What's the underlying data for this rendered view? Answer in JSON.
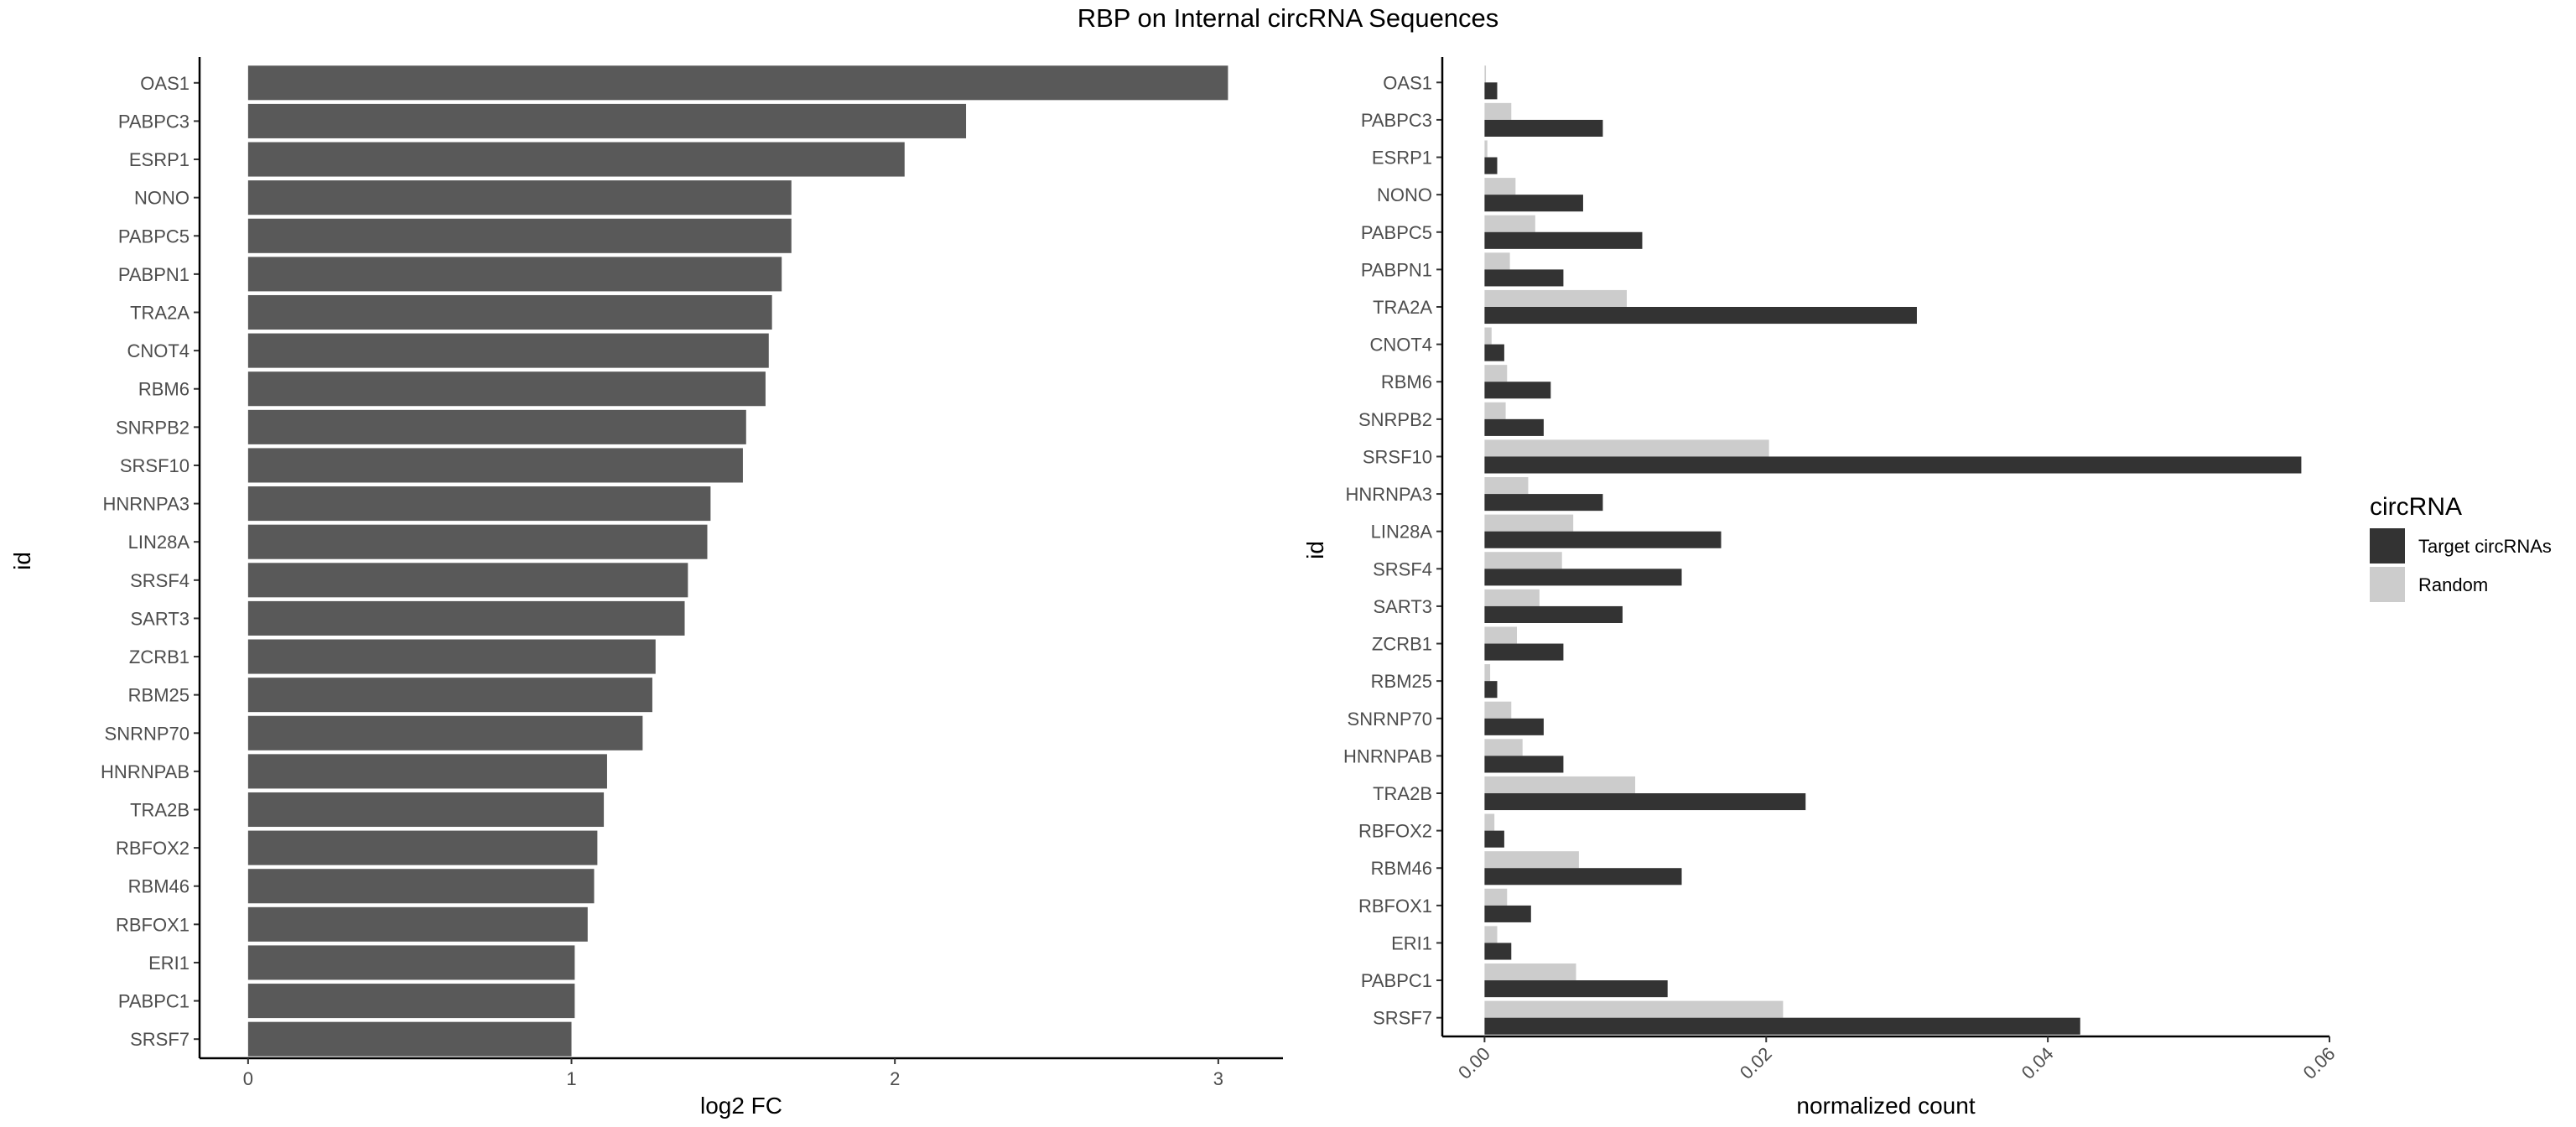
{
  "title": "RBP on Internal circRNA Sequences",
  "chart_data": [
    {
      "type": "bar",
      "orientation": "horizontal",
      "xlabel": "log2 FC",
      "ylabel": "id",
      "xlim": [
        -0.15,
        3.2
      ],
      "xticks": [
        0,
        1,
        2,
        3
      ],
      "xtick_labels": [
        "0",
        "1",
        "2",
        "3"
      ],
      "grid": false,
      "bar_color": "#595959",
      "categories": [
        "OAS1",
        "PABPC3",
        "ESRP1",
        "NONO",
        "PABPC5",
        "PABPN1",
        "TRA2A",
        "CNOT4",
        "RBM6",
        "SNRPB2",
        "SRSF10",
        "HNRNPA3",
        "LIN28A",
        "SRSF4",
        "SART3",
        "ZCRB1",
        "RBM25",
        "SNRNP70",
        "HNRNPAB",
        "TRA2B",
        "RBFOX2",
        "RBM46",
        "RBFOX1",
        "ERI1",
        "PABPC1",
        "SRSF7"
      ],
      "values": [
        3.03,
        2.22,
        2.03,
        1.68,
        1.68,
        1.65,
        1.62,
        1.61,
        1.6,
        1.54,
        1.53,
        1.43,
        1.42,
        1.36,
        1.35,
        1.26,
        1.25,
        1.22,
        1.11,
        1.1,
        1.08,
        1.07,
        1.05,
        1.01,
        1.01,
        1.0
      ]
    },
    {
      "type": "bar",
      "orientation": "horizontal",
      "grouped": true,
      "xlabel": "normalized count",
      "ylabel": "id",
      "xlim": [
        -0.003,
        0.06
      ],
      "xticks": [
        0,
        0.02,
        0.04,
        0.06
      ],
      "xtick_labels": [
        "0.00",
        "0.02",
        "0.04",
        "0.06"
      ],
      "grid": false,
      "legend": {
        "title": "circRNA",
        "position": "right"
      },
      "categories": [
        "OAS1",
        "PABPC3",
        "ESRP1",
        "NONO",
        "PABPC5",
        "PABPN1",
        "TRA2A",
        "CNOT4",
        "RBM6",
        "SNRPB2",
        "SRSF10",
        "HNRNPA3",
        "LIN28A",
        "SRSF4",
        "SART3",
        "ZCRB1",
        "RBM25",
        "SNRNP70",
        "HNRNPAB",
        "TRA2B",
        "RBFOX2",
        "RBM46",
        "RBFOX1",
        "ERI1",
        "PABPC1",
        "SRSF7"
      ],
      "series": [
        {
          "name": "Target circRNAs",
          "color": "#333333",
          "values": [
            0.0009,
            0.0084,
            0.0009,
            0.007,
            0.0112,
            0.0056,
            0.0307,
            0.0014,
            0.0047,
            0.0042,
            0.058,
            0.0084,
            0.0168,
            0.014,
            0.0098,
            0.0056,
            0.0009,
            0.0042,
            0.0056,
            0.0228,
            0.0014,
            0.014,
            0.0033,
            0.0019,
            0.013,
            0.0423
          ]
        },
        {
          "name": "Random",
          "color": "#cccccc",
          "values": [
            0.0001,
            0.0019,
            0.0002,
            0.0022,
            0.0036,
            0.0018,
            0.0101,
            0.0005,
            0.0016,
            0.0015,
            0.0202,
            0.0031,
            0.0063,
            0.0055,
            0.0039,
            0.0023,
            0.0004,
            0.0019,
            0.0027,
            0.0107,
            0.0007,
            0.0067,
            0.0016,
            0.0009,
            0.0065,
            0.0212
          ]
        }
      ]
    }
  ]
}
